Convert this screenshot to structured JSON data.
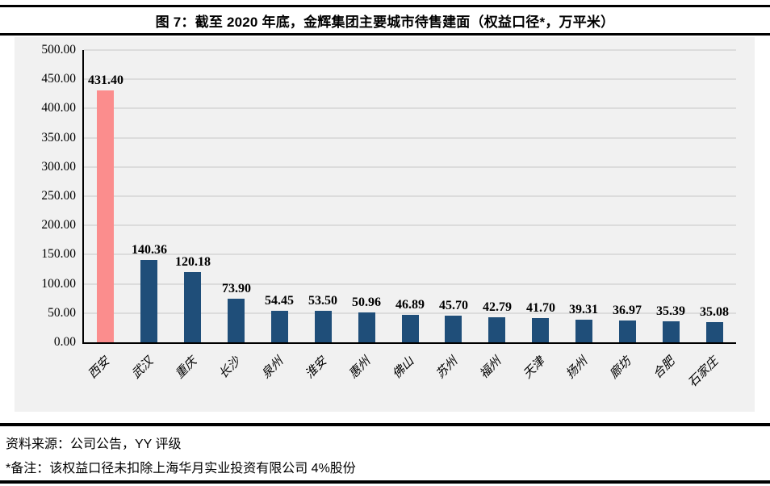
{
  "figure": {
    "title": "图 7：截至 2020 年底，金辉集团主要城市待售建面（权益口径*，万平米）"
  },
  "chart_data": {
    "type": "bar",
    "title": "截至 2020 年底，金辉集团主要城市待售建面（权益口径，万平米）",
    "categories": [
      "西安",
      "武汉",
      "重庆",
      "长沙",
      "泉州",
      "淮安",
      "惠州",
      "佛山",
      "苏州",
      "福州",
      "天津",
      "扬州",
      "廊坊",
      "合肥",
      "石家庄"
    ],
    "values": [
      431.4,
      140.36,
      120.18,
      73.9,
      54.45,
      53.5,
      50.96,
      46.89,
      45.7,
      42.79,
      41.7,
      39.31,
      36.97,
      35.39,
      35.08
    ],
    "value_labels": [
      "431.40",
      "140.36",
      "120.18",
      "73.90",
      "54.45",
      "53.50",
      "50.96",
      "46.89",
      "45.70",
      "42.79",
      "41.70",
      "39.31",
      "36.97",
      "35.39",
      "35.08"
    ],
    "xlabel": "",
    "ylabel": "",
    "ylim": [
      0,
      500
    ],
    "ytick_step": 50,
    "ytick_labels": [
      "0.00",
      "50.00",
      "100.00",
      "150.00",
      "200.00",
      "250.00",
      "300.00",
      "350.00",
      "400.00",
      "450.00",
      "500.00"
    ],
    "grid": true,
    "legend": false,
    "highlight_index": 0,
    "highlight_color": "#fb8d8d",
    "bar_color": "#1f4e79",
    "plot_background": "#f1f1f1",
    "gridline_color": "#dcdcdc",
    "unit": "万平米"
  },
  "footer": {
    "source": "资料来源：公司公告，YY 评级",
    "note": "*备注：该权益口径未扣除上海华月实业投资有限公司 4%股份"
  }
}
